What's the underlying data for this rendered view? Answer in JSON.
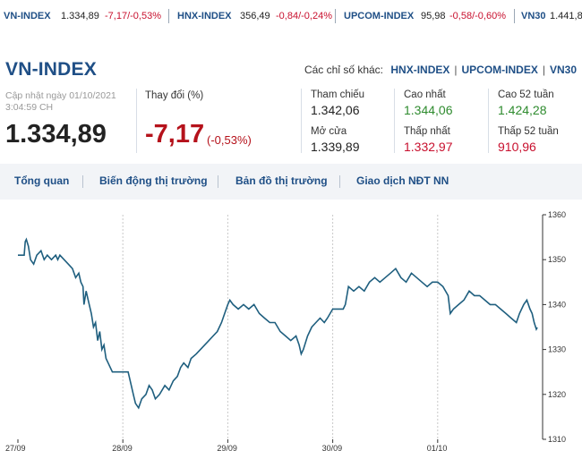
{
  "ticker": [
    {
      "name": "VN-INDEX",
      "value": "1.334,89",
      "change": "-7,17/-0,53%"
    },
    {
      "name": "HNX-INDEX",
      "value": "356,49",
      "change": "-0,84/-0,24%"
    },
    {
      "name": "UPCOM-INDEX",
      "value": "95,98",
      "change": "-0,58/-0,60%"
    },
    {
      "name": "VN30",
      "value": "1.441,8",
      "change": ""
    }
  ],
  "header": {
    "title": "VN-INDEX",
    "others_label": "Các chỉ số khác:",
    "others": [
      "HNX-INDEX",
      "UPCOM-INDEX",
      "VN30"
    ]
  },
  "summary": {
    "updated_line1": "Cập nhật ngày 01/10/2021",
    "updated_line2": "3:04:59 CH",
    "index_value": "1.334,89",
    "change_label": "Thay đổi (%)",
    "change_value": "-7,17",
    "change_pct": "(-0,53%)"
  },
  "stats": {
    "ref_label": "Tham chiếu",
    "ref_value": "1.342,06",
    "open_label": "Mở cửa",
    "open_value": "1.339,89",
    "high_label": "Cao nhất",
    "high_value": "1.344,06",
    "low_label": "Thấp nhất",
    "low_value": "1.332,97",
    "high52_label": "Cao 52 tuần",
    "high52_value": "1.424,28",
    "low52_label": "Thấp 52 tuần",
    "low52_value": "910,96"
  },
  "tabs": [
    "Tổng quan",
    "Biến động thị trường",
    "Bản đồ thị trường",
    "Giao dịch NĐT NN"
  ],
  "colors": {
    "line": "#1f5f7f",
    "brand": "#1f4f86",
    "down": "#c8102e",
    "up": "#2e8b2e"
  },
  "chart_data": {
    "type": "line",
    "x_categories": [
      "27/09",
      "28/09",
      "29/09",
      "30/09",
      "01/10"
    ],
    "ylim": [
      1310,
      1360
    ],
    "yticks": [
      1310,
      1320,
      1330,
      1340,
      1350,
      1360
    ],
    "grid": "vertical dashed at day boundaries",
    "series": [
      {
        "values": [
          [
            0,
            1351
          ],
          [
            0.06,
            1351
          ],
          [
            0.07,
            1354
          ],
          [
            0.08,
            1354.5
          ],
          [
            0.1,
            1353
          ],
          [
            0.12,
            1350
          ],
          [
            0.15,
            1349
          ],
          [
            0.18,
            1351
          ],
          [
            0.22,
            1352
          ],
          [
            0.25,
            1350
          ],
          [
            0.28,
            1351
          ],
          [
            0.32,
            1350
          ],
          [
            0.36,
            1351
          ],
          [
            0.38,
            1350
          ],
          [
            0.4,
            1351
          ],
          [
            0.44,
            1350
          ],
          [
            0.48,
            1349
          ],
          [
            0.52,
            1348
          ],
          [
            0.55,
            1346
          ],
          [
            0.58,
            1347
          ],
          [
            0.6,
            1345
          ],
          [
            0.62,
            1344
          ],
          [
            0.63,
            1340
          ],
          [
            0.65,
            1343
          ],
          [
            0.67,
            1341
          ],
          [
            0.7,
            1338
          ],
          [
            0.72,
            1335
          ],
          [
            0.74,
            1336
          ],
          [
            0.76,
            1332
          ],
          [
            0.78,
            1334
          ],
          [
            0.8,
            1330
          ],
          [
            0.82,
            1331
          ],
          [
            0.84,
            1328
          ],
          [
            0.86,
            1327
          ],
          [
            0.9,
            1325
          ],
          [
            0.95,
            1325
          ],
          [
            1.0,
            1325
          ],
          [
            1.05,
            1325
          ],
          [
            1.08,
            1322
          ],
          [
            1.1,
            1320
          ],
          [
            1.12,
            1318
          ],
          [
            1.15,
            1317
          ],
          [
            1.18,
            1319
          ],
          [
            1.22,
            1320
          ],
          [
            1.25,
            1322
          ],
          [
            1.28,
            1321
          ],
          [
            1.31,
            1319
          ],
          [
            1.35,
            1320
          ],
          [
            1.4,
            1322
          ],
          [
            1.44,
            1321
          ],
          [
            1.48,
            1323
          ],
          [
            1.52,
            1324
          ],
          [
            1.55,
            1326
          ],
          [
            1.58,
            1327
          ],
          [
            1.62,
            1326
          ],
          [
            1.65,
            1328
          ],
          [
            1.7,
            1329
          ],
          [
            1.74,
            1330
          ],
          [
            1.78,
            1331
          ],
          [
            1.82,
            1332
          ],
          [
            1.86,
            1333
          ],
          [
            1.9,
            1334
          ],
          [
            1.94,
            1336
          ],
          [
            1.97,
            1338
          ],
          [
            2.0,
            1340
          ],
          [
            2.02,
            1341
          ],
          [
            2.05,
            1340
          ],
          [
            2.1,
            1339
          ],
          [
            2.15,
            1340
          ],
          [
            2.2,
            1339
          ],
          [
            2.25,
            1340
          ],
          [
            2.3,
            1338
          ],
          [
            2.35,
            1337
          ],
          [
            2.4,
            1336
          ],
          [
            2.45,
            1336
          ],
          [
            2.5,
            1334
          ],
          [
            2.55,
            1333
          ],
          [
            2.6,
            1332
          ],
          [
            2.65,
            1333
          ],
          [
            2.68,
            1331
          ],
          [
            2.7,
            1329
          ],
          [
            2.72,
            1330
          ],
          [
            2.76,
            1333
          ],
          [
            2.8,
            1335
          ],
          [
            2.84,
            1336
          ],
          [
            2.88,
            1337
          ],
          [
            2.92,
            1336
          ],
          [
            2.95,
            1337
          ],
          [
            3.0,
            1339
          ],
          [
            3.05,
            1339
          ],
          [
            3.1,
            1339
          ],
          [
            3.12,
            1340
          ],
          [
            3.15,
            1344
          ],
          [
            3.2,
            1343
          ],
          [
            3.25,
            1344
          ],
          [
            3.3,
            1343
          ],
          [
            3.35,
            1345
          ],
          [
            3.4,
            1346
          ],
          [
            3.45,
            1345
          ],
          [
            3.5,
            1346
          ],
          [
            3.55,
            1347
          ],
          [
            3.6,
            1348
          ],
          [
            3.65,
            1346
          ],
          [
            3.7,
            1345
          ],
          [
            3.75,
            1347
          ],
          [
            3.8,
            1346
          ],
          [
            3.85,
            1345
          ],
          [
            3.9,
            1344
          ],
          [
            3.95,
            1345
          ],
          [
            4.0,
            1345
          ],
          [
            4.05,
            1344
          ],
          [
            4.1,
            1342
          ],
          [
            4.12,
            1338
          ],
          [
            4.15,
            1339
          ],
          [
            4.2,
            1340
          ],
          [
            4.25,
            1341
          ],
          [
            4.3,
            1343
          ],
          [
            4.35,
            1342
          ],
          [
            4.4,
            1342
          ],
          [
            4.45,
            1341
          ],
          [
            4.5,
            1340
          ],
          [
            4.55,
            1340
          ],
          [
            4.6,
            1339
          ],
          [
            4.65,
            1338
          ],
          [
            4.7,
            1337
          ],
          [
            4.75,
            1336
          ],
          [
            4.78,
            1338
          ],
          [
            4.82,
            1340
          ],
          [
            4.85,
            1341
          ],
          [
            4.88,
            1339
          ],
          [
            4.9,
            1338
          ],
          [
            4.92,
            1336
          ],
          [
            4.94,
            1334.5
          ],
          [
            4.95,
            1334.9
          ]
        ]
      }
    ]
  }
}
